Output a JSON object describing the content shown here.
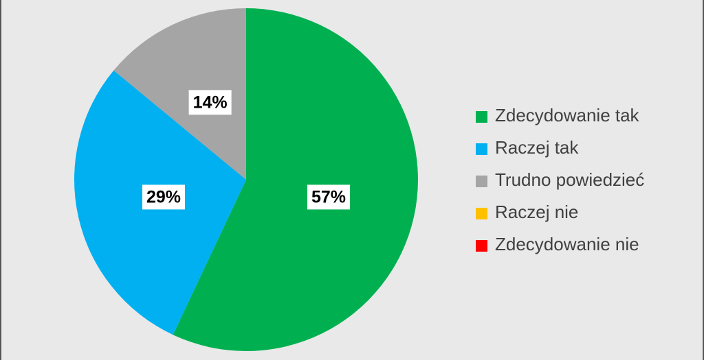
{
  "chart_data": {
    "type": "pie",
    "categories": [
      "Zdecydowanie tak",
      "Raczej tak",
      "Trudno powiedzieć",
      "Raczej nie",
      "Zdecydowanie nie"
    ],
    "values": [
      57,
      29,
      14,
      0,
      0
    ],
    "value_labels": [
      "57%",
      "29%",
      "14%",
      null,
      null
    ],
    "colors": [
      "#00b050",
      "#00b0f0",
      "#a5a5a5",
      "#ffc000",
      "#ff0000"
    ],
    "legend": "right"
  }
}
